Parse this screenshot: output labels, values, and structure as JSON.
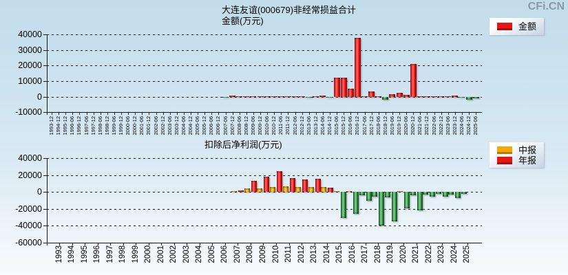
{
  "logo_text": "CFi.CN",
  "colors": {
    "positive_bar": "#e81414",
    "interim_bar": "#f5a800",
    "negative_bar": "#2f8f42",
    "grid": "#151515",
    "logo": "#8b99a5"
  },
  "chart_data": [
    {
      "type": "bar",
      "title": "大连友谊(000679)非经常损益合计",
      "subtitle": "金额(万元)",
      "ylabel": "金额(万元)",
      "legend_position": "top-right",
      "grid": true,
      "legend": [
        {
          "label": "金额",
          "color": "#e81414"
        }
      ],
      "ylim": [
        -10000,
        40000
      ],
      "yticks": [
        40000,
        30000,
        20000,
        10000,
        0,
        -10000
      ],
      "categories": [
        "1993-12",
        "1994-12",
        "1995-12",
        "1996-06",
        "1996-12",
        "1997-06",
        "1997-12",
        "1998-06",
        "1998-12",
        "1999-06",
        "1999-12",
        "2000-06",
        "2000-12",
        "2001-06",
        "2001-12",
        "2002-06",
        "2002-12",
        "2003-06",
        "2003-12",
        "2004-06",
        "2004-12",
        "2005-06",
        "2005-12",
        "2006-06",
        "2006-12",
        "2007-06",
        "2007-12",
        "2008-06",
        "2008-12",
        "2009-06",
        "2009-12",
        "2010-06",
        "2010-12",
        "2011-06",
        "2011-12",
        "2012-06",
        "2012-12",
        "2013-06",
        "2013-12",
        "2014-06",
        "2014-12",
        "2015-06",
        "2015-12",
        "2016-06",
        "2016-12",
        "2017-06",
        "2017-12",
        "2018-06",
        "2018-12",
        "2019-06",
        "2019-12",
        "2020-06",
        "2020-12",
        "2021-06",
        "2021-12",
        "2022-06",
        "2022-12",
        "2023-06",
        "2023-12",
        "2024-06",
        "2024-12",
        "2025-06"
      ],
      "values": [
        null,
        null,
        null,
        null,
        null,
        null,
        null,
        null,
        null,
        null,
        null,
        null,
        null,
        null,
        null,
        null,
        null,
        null,
        null,
        null,
        null,
        null,
        null,
        null,
        null,
        -300,
        900,
        400,
        500,
        400,
        500,
        400,
        500,
        500,
        500,
        400,
        400,
        -300,
        400,
        600,
        -400,
        12000,
        12000,
        5000,
        38000,
        200,
        3400,
        200,
        -2000,
        1400,
        2500,
        1000,
        21000,
        300,
        400,
        300,
        400,
        300,
        700,
        -200,
        -2000,
        -1000
      ]
    },
    {
      "type": "bar",
      "title": "扣除后净利润(万元)",
      "legend_position": "top-right",
      "grid": true,
      "legend": [
        {
          "label": "中报",
          "color": "#f5a800"
        },
        {
          "label": "年报",
          "color": "#e81414"
        }
      ],
      "ylim": [
        -60000,
        40000
      ],
      "yticks": [
        40000,
        20000,
        0,
        -20000,
        -40000,
        -60000
      ],
      "categories": [
        "1993",
        "1994",
        "1995",
        "1996",
        "1997",
        "1998",
        "1999",
        "2000",
        "2001",
        "2002",
        "2003",
        "2004",
        "2005",
        "2006",
        "2007",
        "2008",
        "2009",
        "2010",
        "2011",
        "2012",
        "2013",
        "2014",
        "2015",
        "2016",
        "2017",
        "2018",
        "2019",
        "2020",
        "2021",
        "2022",
        "2023",
        "2024",
        "2025"
      ],
      "series": [
        {
          "name": "中报",
          "values": [
            null,
            null,
            null,
            null,
            null,
            null,
            null,
            null,
            null,
            null,
            null,
            null,
            null,
            null,
            1000,
            4700,
            4700,
            6000,
            6500,
            5900,
            5900,
            5900,
            500,
            400,
            -3500,
            -5500,
            -6500,
            800,
            -4000,
            -3000,
            -2500,
            -3000,
            -2500
          ]
        },
        {
          "name": "年报",
          "values": [
            null,
            null,
            null,
            null,
            null,
            null,
            null,
            null,
            null,
            null,
            null,
            null,
            null,
            null,
            1900,
            13500,
            18000,
            25000,
            16800,
            14600,
            15400,
            5000,
            -31000,
            -26000,
            -10500,
            -40000,
            -35000,
            -19000,
            -21500,
            -5500,
            -5500,
            -7000,
            null
          ]
        }
      ]
    }
  ]
}
